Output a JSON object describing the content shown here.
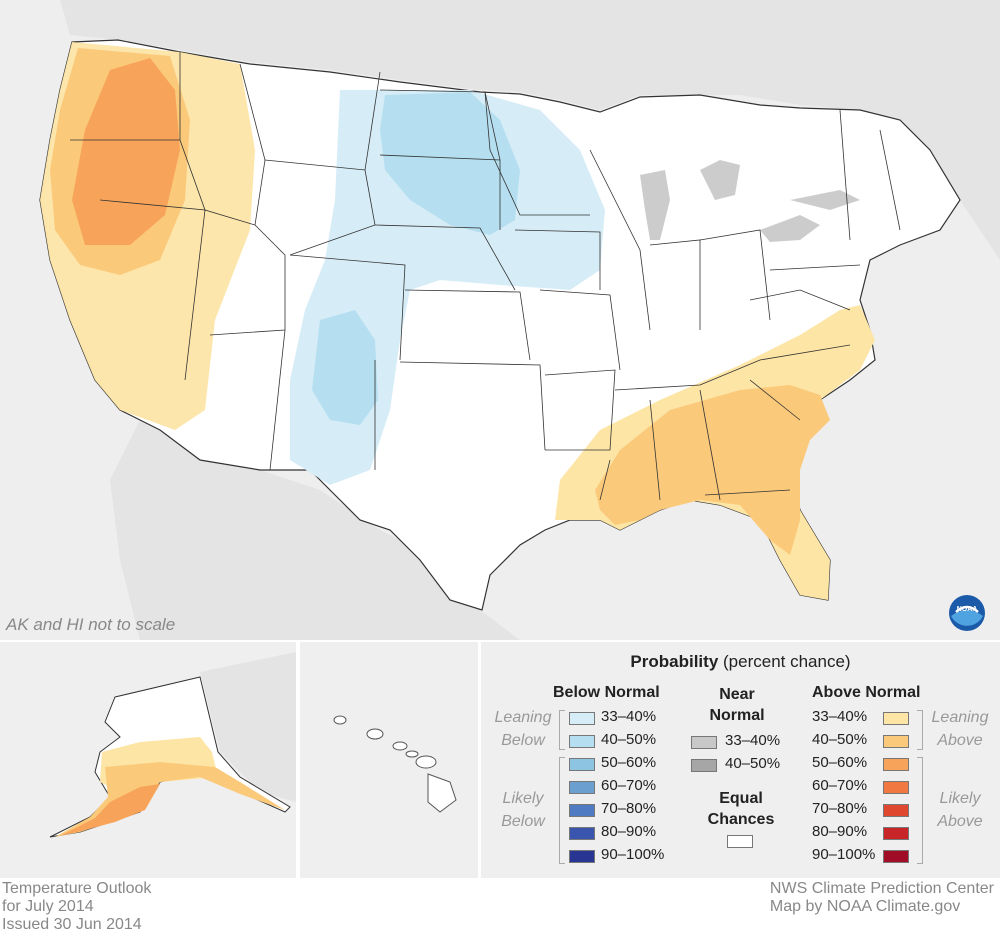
{
  "notes": {
    "scale": "AK and HI not to scale"
  },
  "legend": {
    "title_bold": "Probability",
    "title_rest": " (percent chance)",
    "below_head": "Below Normal",
    "near_head_1": "Near",
    "near_head_2": "Normal",
    "above_head": "Above Normal",
    "equal_1": "Equal",
    "equal_2": "Chances",
    "leaning_below_1": "Leaning",
    "leaning_below_2": "Below",
    "likely_below_1": "Likely",
    "likely_below_2": "Below",
    "leaning_above_1": "Leaning",
    "leaning_above_2": "Above",
    "likely_above_1": "Likely",
    "likely_above_2": "Above",
    "below": [
      {
        "label": "33–40%",
        "color": "#d6edf7"
      },
      {
        "label": "40–50%",
        "color": "#b5dff0"
      },
      {
        "label": "50–60%",
        "color": "#8cc4e2"
      },
      {
        "label": "60–70%",
        "color": "#6a9fd0"
      },
      {
        "label": "70–80%",
        "color": "#4f7bc2"
      },
      {
        "label": "80–90%",
        "color": "#3a55ad"
      },
      {
        "label": "90–100%",
        "color": "#283592"
      }
    ],
    "near": [
      {
        "label": "33–40%",
        "color": "#c8c8c8"
      },
      {
        "label": "40–50%",
        "color": "#a6a6a6"
      }
    ],
    "above": [
      {
        "label": "33–40%",
        "color": "#fde5a6"
      },
      {
        "label": "40–50%",
        "color": "#fbc97a"
      },
      {
        "label": "50–60%",
        "color": "#f7a45a"
      },
      {
        "label": "60–70%",
        "color": "#f27842"
      },
      {
        "label": "70–80%",
        "color": "#e0472f"
      },
      {
        "label": "80–90%",
        "color": "#c72527"
      },
      {
        "label": "90–100%",
        "color": "#a10d26"
      }
    ],
    "equal_color": "#ffffff"
  },
  "footer": {
    "left_1": "Temperature Outlook",
    "left_2": "for July 2014",
    "left_3": "Issued 30 Jun 2014",
    "right_1": "NWS Climate Prediction Center",
    "right_2": "Map by NOAA Climate.gov"
  },
  "colors": {
    "background": "#eeeeee",
    "land": "#ffffff",
    "land_outside": "#e4e4e4"
  }
}
